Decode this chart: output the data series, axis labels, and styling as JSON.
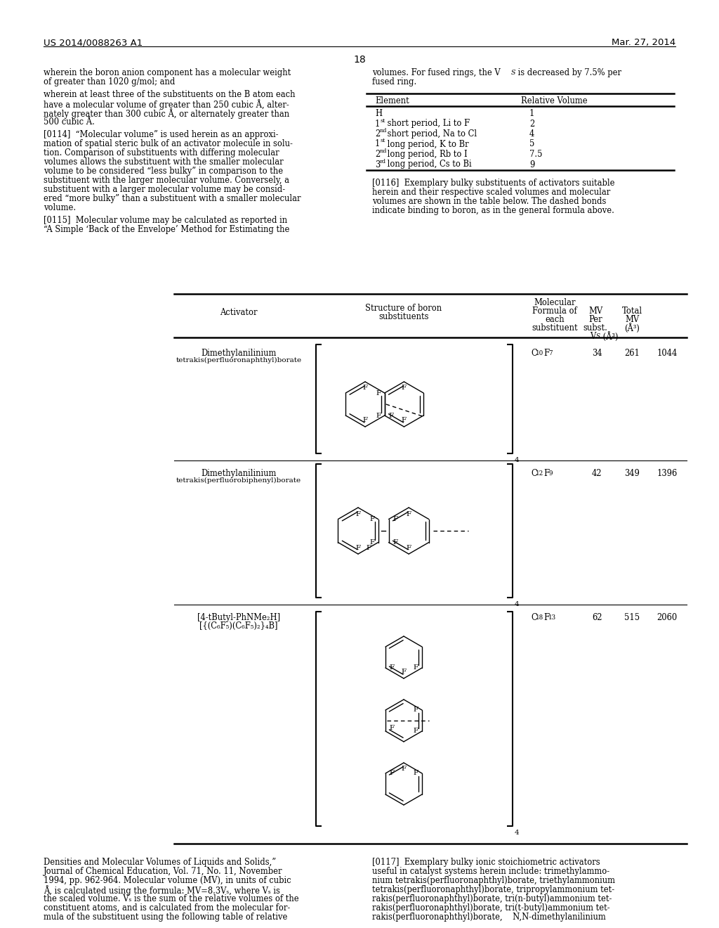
{
  "page_header_left": "US 2014/0088263 A1",
  "page_header_right": "Mar. 27, 2014",
  "page_number": "18",
  "left_content": [
    "wherein the boron anion component has a molecular weight",
    "of greater than 1020 g/mol; and",
    "",
    "wherein at least three of the substituents on the B atom each",
    "have a molecular volume of greater than 250 cubic Å, alter-",
    "nately greater than 300 cubic Å, or alternately greater than",
    "500 cubic Å.",
    "",
    "[0114]  “Molecular volume” is used herein as an approxi-",
    "mation of spatial steric bulk of an activator molecule in solu-",
    "tion. Comparison of substituents with differing molecular",
    "volumes allows the substituent with the smaller molecular",
    "volume to be considered “less bulky” in comparison to the",
    "substituent with the larger molecular volume. Conversely, a",
    "substituent with a larger molecular volume may be consid-",
    "ered “more bulky” than a substituent with a smaller molecular",
    "volume.",
    "",
    "[0115]  Molecular volume may be calculated as reported in",
    "“A Simple ‘Back of the Envelope’ Method for Estimating the"
  ],
  "right_top_line1": "volumes. For fused rings, the V",
  "right_top_line1b": "S",
  "right_top_line1c": " is decreased by 7.5% per",
  "right_top_line2": "fused ring.",
  "small_table_rows": [
    [
      "H",
      "1"
    ],
    [
      "1st short period, Li to F",
      "2"
    ],
    [
      "2nd short period, Na to Cl",
      "4"
    ],
    [
      "1st long period, K to Br",
      "5"
    ],
    [
      "2nd long period, Rb to I",
      "7.5"
    ],
    [
      "3rd long period, Cs to Bi",
      "9"
    ]
  ],
  "para116": [
    "[0116]  Exemplary bulky substituents of activators suitable",
    "herein and their respective scaled volumes and molecular",
    "volumes are shown in the table below. The dashed bonds",
    "indicate binding to boron, as in the general formula above."
  ],
  "bottom_left": [
    "Densities and Molecular Volumes of Liquids and Solids,”",
    "Journal of Chemical Education, Vol. 71, No. 11, November",
    "1994, pp. 962-964. Molecular volume (MV), in units of cubic",
    "Å, is calculated using the formula: MV=8.3Vₛ, where Vₛ is",
    "the scaled volume. Vₛ is the sum of the relative volumes of the",
    "constituent atoms, and is calculated from the molecular for-",
    "mula of the substituent using the following table of relative"
  ],
  "bottom_right": [
    "[0117]  Exemplary bulky ionic stoichiometric activators",
    "useful in catalyst systems herein include: trimethylammo-",
    "nium tetrakis(perfluoronaphthyl)borate, triethylammonium",
    "tetrakis(perfluoronaphthyl)borate, tripropylammonium tet-",
    "rakis(perfluoronaphthyl)borate, tri(n-butyl)ammonium tet-",
    "rakis(perfluoronaphthyl)borate, tri(t-butyl)ammonium tet-",
    "rakis(perfluoronaphthyl)borate,    N,N-dimethylanilinium"
  ]
}
